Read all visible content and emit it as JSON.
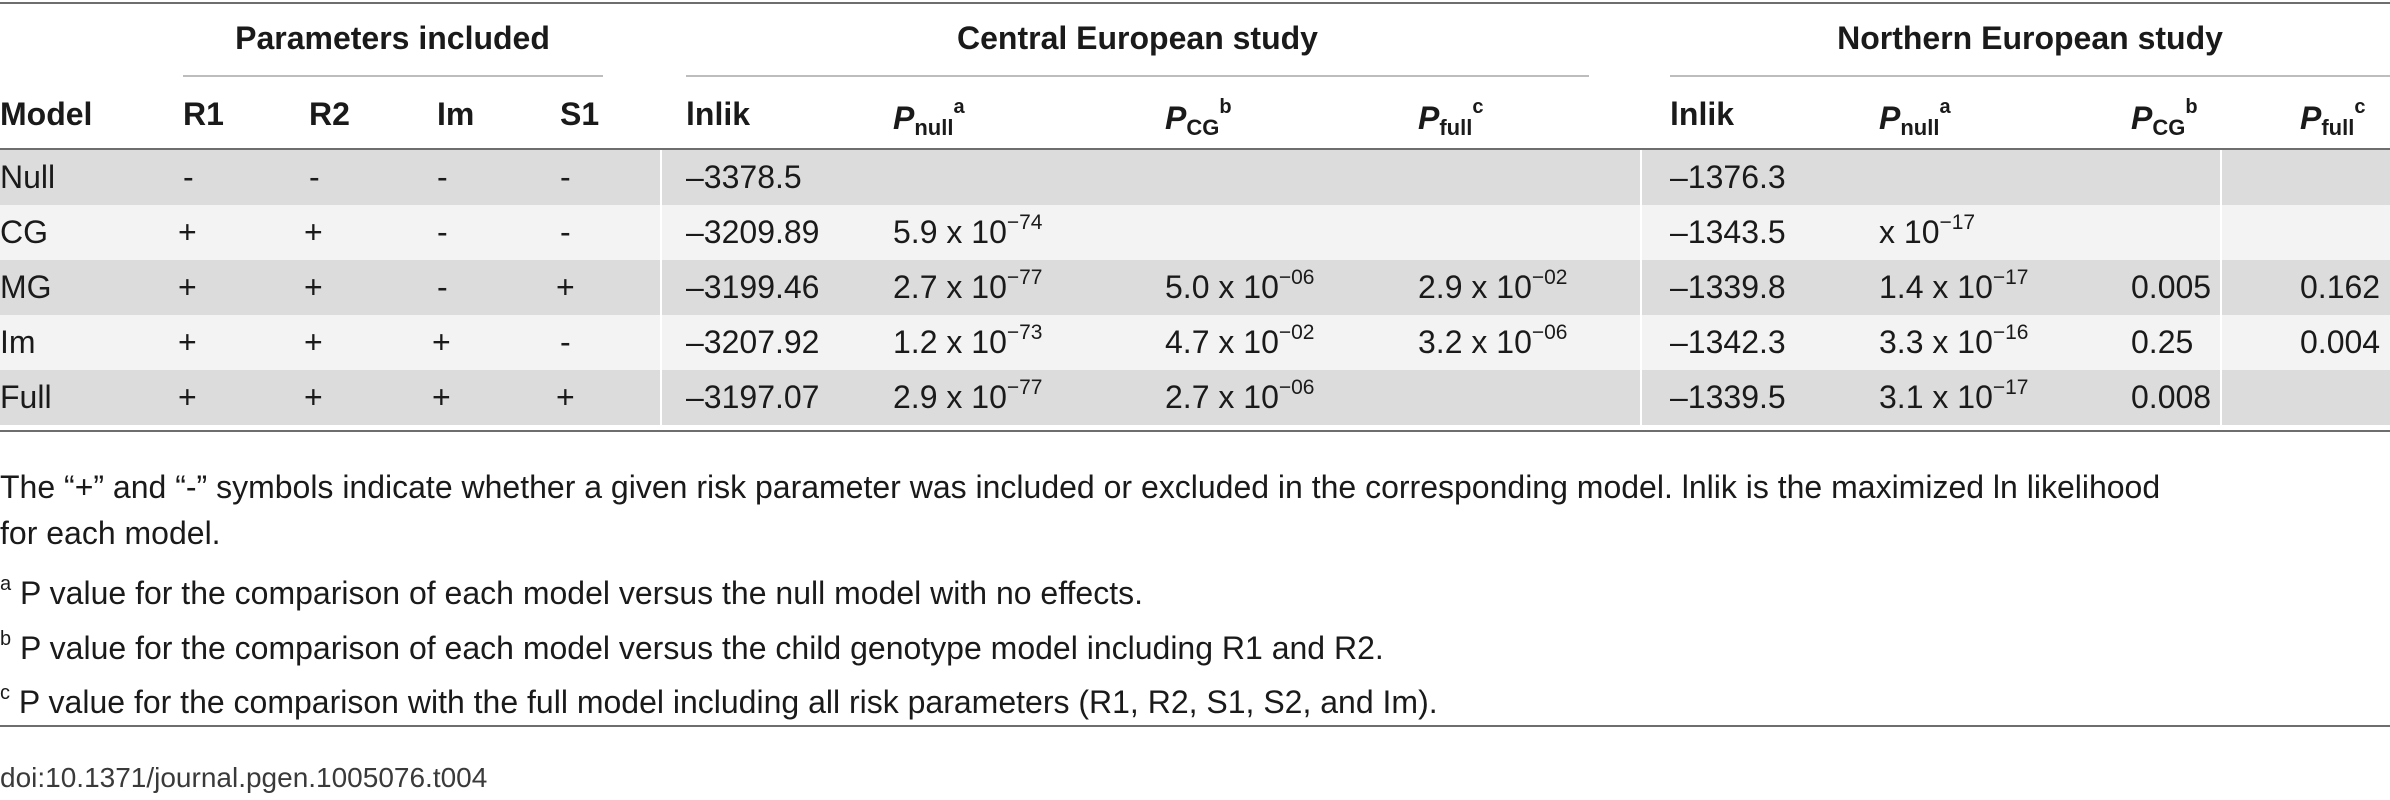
{
  "groups": {
    "params": "Parameters included",
    "central": "Central European study",
    "northern": "Northern European study"
  },
  "columns": {
    "model": "Model",
    "r1": "R1",
    "r2": "R2",
    "im": "Im",
    "s1": "S1",
    "inlik": "lnlik",
    "p_letter": "P",
    "sub_null": "null",
    "sub_cg": "CG",
    "sub_full": "full",
    "sup_a": "a",
    "sup_b": "b",
    "sup_c": "c"
  },
  "rows": [
    {
      "model": "Null",
      "r1": "-",
      "r2": "-",
      "im": "-",
      "s1": "-",
      "c_inlik": "–3378.5",
      "c_pnull": "",
      "c_pcg": "",
      "c_pfull": "",
      "n_inlik": "–1376.3",
      "n_pnull": "",
      "n_pcg": "",
      "n_pfull": ""
    },
    {
      "model": "CG",
      "r1": "+",
      "r2": "+",
      "im": "-",
      "s1": "-",
      "c_inlik": "–3209.89",
      "c_pnull": "5.9 x 10",
      "c_pnull_exp": "−74",
      "c_pcg": "",
      "c_pfull": "",
      "n_inlik": "–1343.5",
      "n_pnull": "x 10",
      "n_pnull_exp": "−17",
      "n_pcg": "",
      "n_pfull": ""
    },
    {
      "model": "MG",
      "r1": "+",
      "r2": "+",
      "im": "-",
      "s1": "+",
      "c_inlik": "–3199.46",
      "c_pnull": "2.7 x 10",
      "c_pnull_exp": "−77",
      "c_pcg": "5.0 x 10",
      "c_pcg_exp": "−06",
      "c_pfull": "2.9 x 10",
      "c_pfull_exp": "−02",
      "n_inlik": "–1339.8",
      "n_pnull": "1.4 x 10",
      "n_pnull_exp": "−17",
      "n_pcg": "0.005",
      "n_pfull": "0.162"
    },
    {
      "model": "Im",
      "r1": "+",
      "r2": "+",
      "im": "+",
      "s1": "-",
      "c_inlik": "–3207.92",
      "c_pnull": "1.2 x 10",
      "c_pnull_exp": "−73",
      "c_pcg": "4.7 x 10",
      "c_pcg_exp": "−02",
      "c_pfull": "3.2 x 10",
      "c_pfull_exp": "−06",
      "n_inlik": "–1342.3",
      "n_pnull": "3.3 x 10",
      "n_pnull_exp": "−16",
      "n_pcg": "0.25",
      "n_pfull": "0.004"
    },
    {
      "model": "Full",
      "r1": "+",
      "r2": "+",
      "im": "+",
      "s1": "+",
      "c_inlik": "–3197.07",
      "c_pnull": "2.9 x 10",
      "c_pnull_exp": "−77",
      "c_pcg": "2.7 x 10",
      "c_pcg_exp": "−06",
      "c_pfull": "",
      "n_inlik": "–1339.5",
      "n_pnull": "3.1 x 10",
      "n_pnull_exp": "−17",
      "n_pcg": "0.008",
      "n_pfull": ""
    }
  ],
  "notes": {
    "main_line1": "The “+” and “-” symbols indicate whether a given risk parameter was included or excluded in the corresponding model. lnlik is the maximized ln likelihood",
    "main_line2": "for each model.",
    "a_mark": "a",
    "a_text": " P value for the comparison of each model versus the null model with no effects.",
    "b_mark": "b",
    "b_text": " P value for the comparison of each model versus the child genotype model including R1 and R2.",
    "c_mark": "c",
    "c_text": " P value for the comparison with the full model including all risk parameters (R1, R2, S1, S2, and Im)."
  },
  "doi": "doi:10.1371/journal.pgen.1005076.t004"
}
